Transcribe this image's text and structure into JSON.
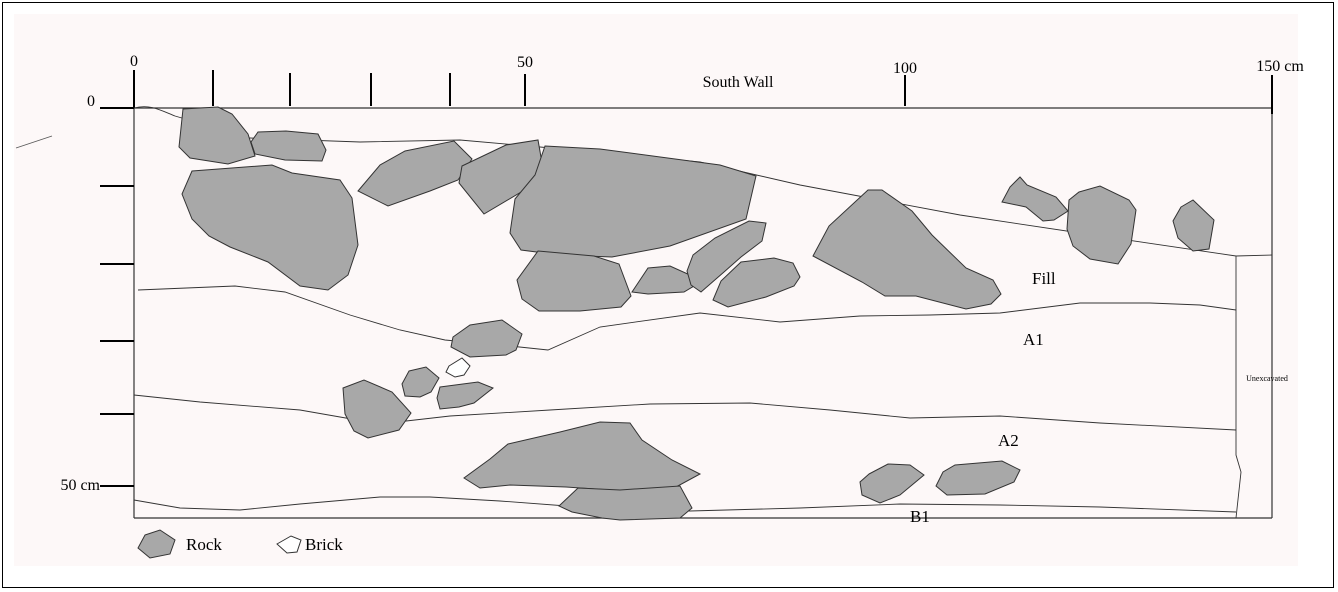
{
  "diagram": {
    "title": "South Wall",
    "top_scale_labels": [
      "0",
      "50",
      "100",
      "150 cm"
    ],
    "left_scale_labels": [
      "0",
      "50 cm"
    ],
    "layer_labels": [
      "Fill",
      "A1",
      "A2",
      "B1"
    ],
    "side_label": "Unexcavated",
    "legend": [
      {
        "label": "Rock",
        "symbol": "rock"
      },
      {
        "label": "Brick",
        "symbol": "brick"
      }
    ],
    "colors": {
      "rock_fill": "#a8a8a8",
      "outline": "#333333",
      "panel_bg": "#fdf8f8"
    }
  }
}
